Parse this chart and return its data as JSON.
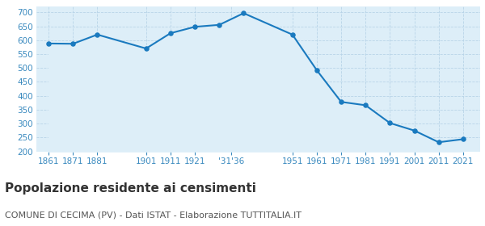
{
  "years": [
    1861,
    1871,
    1881,
    1901,
    1911,
    1921,
    1931,
    1936,
    1951,
    1961,
    1971,
    1981,
    1991,
    2001,
    2011,
    2021
  ],
  "population": [
    588,
    587,
    620,
    570,
    625,
    648,
    655,
    697,
    620,
    492,
    378,
    366,
    302,
    275,
    233,
    244
  ],
  "x_positions": [
    0,
    1,
    2,
    4,
    5,
    6,
    7,
    8,
    10,
    11,
    12,
    13,
    14,
    15,
    16,
    17
  ],
  "x_tick_positions": [
    0,
    1,
    2,
    4,
    5,
    6,
    7.5,
    10,
    11,
    12,
    13,
    14,
    15,
    16,
    17
  ],
  "x_tick_labels": [
    "1861",
    "1871",
    "1881",
    "1901",
    "1911",
    "1921",
    "'31'36",
    "1951",
    "1961",
    "1971",
    "1981",
    "1991",
    "2001",
    "2011",
    "2021"
  ],
  "line_color": "#1a7abf",
  "fill_color": "#ddeef8",
  "marker_color": "#1a7abf",
  "background_color": "#ffffff",
  "grid_color": "#b8d4e8",
  "title": "Popolazione residente ai censimenti",
  "subtitle": "COMUNE DI CECIMA (PV) - Dati ISTAT - Elaborazione TUTTITALIA.IT",
  "ylim": [
    200,
    720
  ],
  "yticks": [
    200,
    250,
    300,
    350,
    400,
    450,
    500,
    550,
    600,
    650,
    700
  ],
  "title_fontsize": 11,
  "subtitle_fontsize": 8,
  "tick_color": "#3a8abf",
  "tick_fontsize": 7.5,
  "axis_label_color": "#3a8abf"
}
